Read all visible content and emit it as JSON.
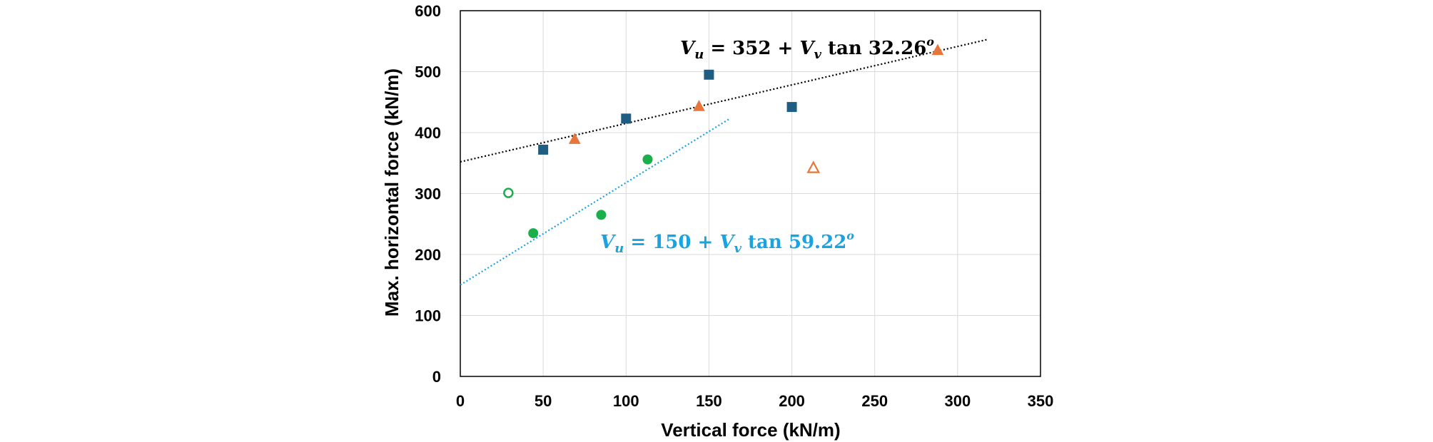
{
  "chart_data": {
    "type": "scatter",
    "title": "",
    "xlabel": "Vertical force (kN/m)",
    "ylabel": "Max. horizontal force (kN/m)",
    "xlim": [
      0,
      350
    ],
    "ylim": [
      0,
      600
    ],
    "xticks": [
      0,
      50,
      100,
      150,
      200,
      250,
      300,
      350
    ],
    "yticks": [
      0,
      100,
      200,
      300,
      400,
      500,
      600
    ],
    "grid": true,
    "legend": "none",
    "colors": {
      "square": "#1f5e82",
      "triangle": "#e8763a",
      "circle": "#19b04b",
      "fit_black": "#000000",
      "fit_blue": "#1aa3e0"
    },
    "series": [
      {
        "name": "squares",
        "marker": "square-filled",
        "color": "#1f5e82",
        "points": [
          [
            50,
            372
          ],
          [
            100,
            423
          ],
          [
            150,
            495
          ],
          [
            200,
            442
          ]
        ]
      },
      {
        "name": "triangles",
        "marker": "triangle-filled",
        "color": "#e8763a",
        "points": [
          [
            69,
            389
          ],
          [
            144,
            443
          ],
          [
            288,
            535
          ]
        ]
      },
      {
        "name": "triangle-open",
        "marker": "triangle-open",
        "color": "#e8763a",
        "points": [
          [
            213,
            342
          ]
        ]
      },
      {
        "name": "circles",
        "marker": "circle-filled",
        "color": "#19b04b",
        "points": [
          [
            44,
            235
          ],
          [
            85,
            265
          ],
          [
            113,
            356
          ]
        ]
      },
      {
        "name": "circle-open",
        "marker": "circle-open",
        "color": "#19b04b",
        "points": [
          [
            29,
            301
          ]
        ]
      }
    ],
    "trendlines": [
      {
        "name": "fit-upper",
        "color": "#000000",
        "intercept": 352,
        "angle_deg": 32.26,
        "x_range": [
          0,
          318
        ],
        "label": {
          "lhs": "V",
          "lhs_sub": "u",
          "mid": " = 352 + ",
          "var": "V",
          "var_sub": "v",
          "tail": " tan 32.26",
          "sup": "o"
        }
      },
      {
        "name": "fit-lower",
        "color": "#1aa3e0",
        "intercept": 150,
        "angle_deg": 59.22,
        "x_range": [
          0,
          163
        ],
        "label": {
          "lhs": "V",
          "lhs_sub": "u",
          "mid": " = 150 + ",
          "var": "V",
          "var_sub": "v",
          "tail": " tan 59.22",
          "sup": "o"
        }
      }
    ]
  }
}
